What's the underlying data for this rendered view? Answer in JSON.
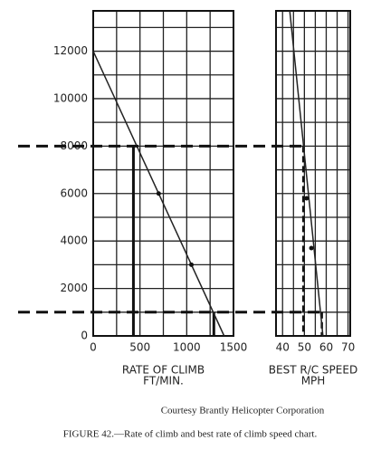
{
  "chart_data": [
    {
      "type": "line",
      "xlabel_lines": [
        "RATE OF CLIMB",
        "FT/MIN."
      ],
      "xlim": [
        0,
        1500
      ],
      "ylim": [
        0,
        13700
      ],
      "xticks": [
        0,
        500,
        1000,
        1500
      ],
      "xgrid": [
        250,
        750,
        1250
      ],
      "yticks": [
        0,
        2000,
        4000,
        6000,
        8000,
        10000,
        12000
      ],
      "ygrid": [
        1000,
        3000,
        5000,
        7000,
        9000,
        11000,
        13000
      ],
      "series": [
        {
          "color": "#222222",
          "x": [
            0,
            1400
          ],
          "values": [
            12000,
            0
          ]
        }
      ],
      "points": {
        "x": [
          700,
          1050
        ],
        "values": [
          6000,
          3000
        ]
      },
      "drops": {
        "style": "solid",
        "x": [
          430,
          1290
        ],
        "values": [
          8000,
          1000
        ]
      }
    },
    {
      "type": "line",
      "xlabel_lines": [
        "BEST R/C SPEED",
        "MPH"
      ],
      "xlim": [
        37,
        71
      ],
      "ylim": [
        0,
        13700
      ],
      "xticks": [
        40,
        50,
        60,
        70
      ],
      "xgrid": [
        45,
        55,
        65
      ],
      "ygrid": [
        1000,
        2000,
        3000,
        4000,
        5000,
        6000,
        7000,
        8000,
        9000,
        10000,
        11000,
        12000,
        13000
      ],
      "series": [
        {
          "color": "#222222",
          "x": [
            43.3,
            58.5
          ],
          "values": [
            13700,
            0
          ]
        }
      ],
      "points": {
        "x": [
          51,
          53.2
        ],
        "values": [
          5800,
          3700
        ]
      },
      "drops": {
        "style": "dashed",
        "x": [
          49.5,
          58
        ],
        "values": [
          8000,
          1000
        ]
      }
    }
  ],
  "credit": "Courtesy Brantly Helicopter Corporation",
  "caption": "FIGURE 42.—Rate of climb and best rate of climb speed chart."
}
